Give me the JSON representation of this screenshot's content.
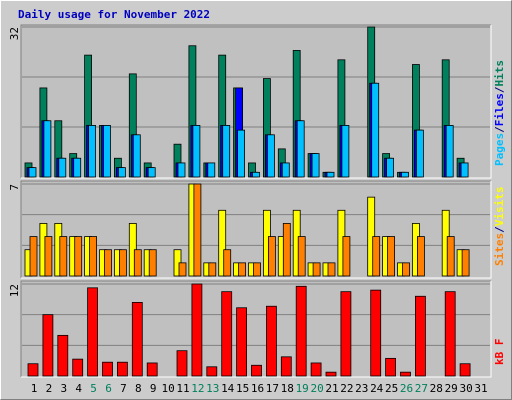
{
  "chart_data": [
    {
      "type": "bar",
      "title": "Daily usage for November 2022",
      "ylim": [
        0,
        32
      ],
      "yticks": [
        {
          "value": 10.67,
          "label": null
        },
        {
          "value": 21.33,
          "label": null
        },
        32
      ],
      "grid": true,
      "legend_separator": "/",
      "series": [
        {
          "name": "Hits",
          "color": "#00805c",
          "values": [
            3,
            19,
            12,
            5,
            26,
            11,
            4,
            22,
            3,
            0,
            7,
            28,
            3,
            26,
            19,
            3,
            21,
            6,
            27,
            5,
            1,
            25,
            0,
            32,
            5,
            1,
            24,
            0,
            25,
            4,
            0
          ]
        },
        {
          "name": "Files",
          "color": "#0000ff",
          "values": [
            2,
            12,
            4,
            4,
            11,
            11,
            2,
            9,
            2,
            0,
            3,
            11,
            3,
            11,
            19,
            1,
            9,
            3,
            12,
            5,
            1,
            11,
            0,
            20,
            4,
            1,
            10,
            0,
            11,
            3,
            0
          ]
        },
        {
          "name": "Pages",
          "color": "#00c0ff",
          "values": [
            2,
            12,
            4,
            4,
            11,
            11,
            2,
            9,
            2,
            0,
            3,
            11,
            3,
            11,
            10,
            1,
            9,
            3,
            12,
            5,
            1,
            11,
            0,
            20,
            4,
            1,
            10,
            0,
            11,
            3,
            0
          ]
        }
      ]
    },
    {
      "type": "bar",
      "ylim": [
        0,
        7
      ],
      "yticks": [
        {
          "value": 2.33,
          "label": null
        },
        {
          "value": 4.67,
          "label": null
        },
        7
      ],
      "grid": true,
      "legend_separator": "/",
      "series": [
        {
          "name": "Visits",
          "color": "#ffff00",
          "values": [
            2,
            4,
            4,
            3,
            3,
            2,
            2,
            4,
            2,
            0,
            2,
            7,
            1,
            5,
            1,
            1,
            5,
            3,
            5,
            1,
            1,
            5,
            0,
            6,
            3,
            1,
            4,
            0,
            5,
            2,
            0
          ]
        },
        {
          "name": "Sites",
          "color": "#ff8000",
          "values": [
            3,
            3,
            3,
            3,
            3,
            2,
            2,
            2,
            2,
            0,
            1,
            7,
            1,
            2,
            1,
            1,
            3,
            4,
            3,
            1,
            1,
            3,
            0,
            3,
            3,
            1,
            3,
            0,
            3,
            2,
            0
          ]
        }
      ]
    },
    {
      "type": "bar",
      "ylim": [
        0,
        12
      ],
      "yticks": [
        {
          "value": 4,
          "label": null
        },
        {
          "value": 8,
          "label": null
        },
        12
      ],
      "grid": true,
      "categories": [
        "1",
        "2",
        "3",
        "4",
        "5",
        "6",
        "7",
        "8",
        "9",
        "10",
        "11",
        "12",
        "13",
        "14",
        "15",
        "16",
        "17",
        "18",
        "19",
        "20",
        "21",
        "22",
        "23",
        "24",
        "25",
        "26",
        "27",
        "28",
        "29",
        "30",
        "31"
      ],
      "category_colors": [
        "#000000",
        "#000000",
        "#000000",
        "#000000",
        "#00805c",
        "#00805c",
        "#000000",
        "#000000",
        "#000000",
        "#000000",
        "#000000",
        "#00805c",
        "#00805c",
        "#000000",
        "#000000",
        "#000000",
        "#000000",
        "#000000",
        "#00805c",
        "#00805c",
        "#000000",
        "#000000",
        "#000000",
        "#000000",
        "#000000",
        "#00805c",
        "#00805c",
        "#000000",
        "#000000",
        "#000000",
        "#000000"
      ],
      "series": [
        {
          "name": "kB F",
          "color": "#ff0000",
          "values": [
            1.6,
            8,
            5.3,
            2.2,
            11.5,
            1.8,
            1.8,
            9.6,
            1.7,
            0,
            3.3,
            12,
            1.2,
            11,
            8.9,
            1.4,
            9.1,
            2.5,
            11.7,
            1.7,
            0.5,
            11,
            0,
            11.2,
            2.3,
            0.5,
            10.4,
            0,
            11,
            1.6,
            0
          ]
        }
      ]
    }
  ]
}
